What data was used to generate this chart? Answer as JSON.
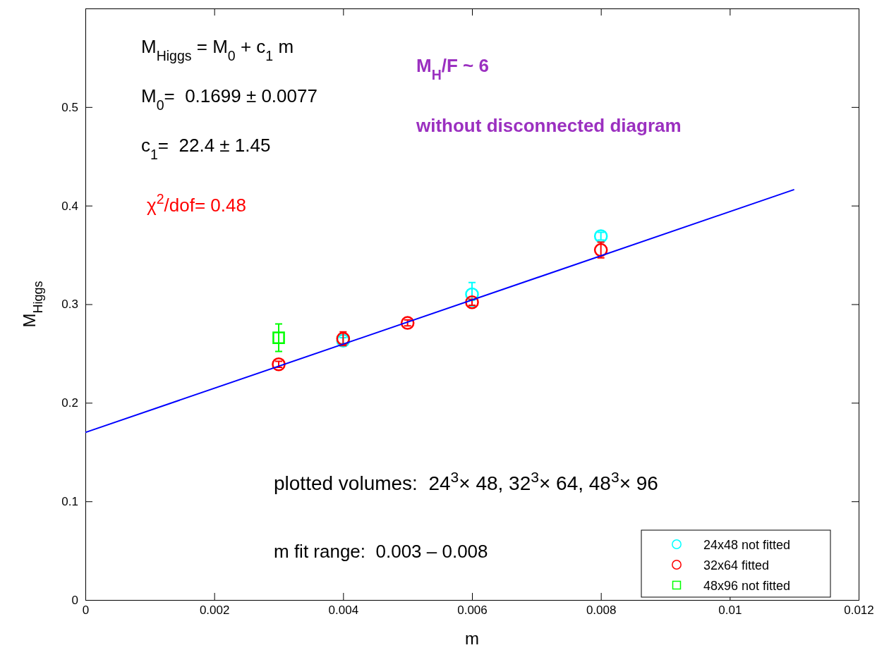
{
  "chart_data": {
    "type": "scatter",
    "xlabel": "m",
    "ylabel": "M$_{Higgs}$",
    "xlim": [
      0,
      0.012
    ],
    "xticks": [
      0,
      0.002,
      0.004,
      0.006,
      0.008,
      0.01,
      0.012
    ],
    "ylim": [
      0,
      0.6
    ],
    "yticks": [
      0,
      0.1,
      0.2,
      0.3,
      0.4,
      0.5
    ],
    "grid": false,
    "legend": "bottom right",
    "series": [
      {
        "name": "24x48 not fitted",
        "color": "#00ffff",
        "marker": "circle",
        "x": [
          0.004,
          0.006,
          0.008
        ],
        "values": [
          0.263,
          0.31,
          0.369
        ],
        "errors": [
          0.003,
          0.012,
          0.004
        ]
      },
      {
        "name": "32x64 fitted",
        "color": "#ff0000",
        "marker": "circle",
        "x": [
          0.003,
          0.004,
          0.005,
          0.006,
          0.008
        ],
        "values": [
          0.239,
          0.265,
          0.281,
          0.302,
          0.355
        ],
        "errors": [
          0.003,
          0.007,
          0.003,
          0.003,
          0.008
        ]
      },
      {
        "name": "48x96 not fitted",
        "color": "#00ff00",
        "marker": "square",
        "x": [
          0.003
        ],
        "values": [
          0.266
        ],
        "errors": [
          0.014
        ]
      },
      {
        "type": "line",
        "color": "#0000ff",
        "x": [
          0,
          0.011
        ],
        "values": [
          0.1699,
          0.4163
        ]
      }
    ],
    "annotations": [
      "M$_{Higgs}$ = M$_{0}$ + c$_{1}$ m",
      "M$_{0}$=  0.1699 ± 0.0077",
      "c$_{1}$=  22.4 ± 1.45",
      "χ$^{2}$/dof= 0.48",
      "M$_{H}$/F ~ 6",
      "without disconnected diagram",
      "plotted volumes:  24$^{3}$× 48, 32$^{3}$× 64, 48$^{3}$× 96",
      "m fit range:  0.003 – 0.008"
    ]
  }
}
